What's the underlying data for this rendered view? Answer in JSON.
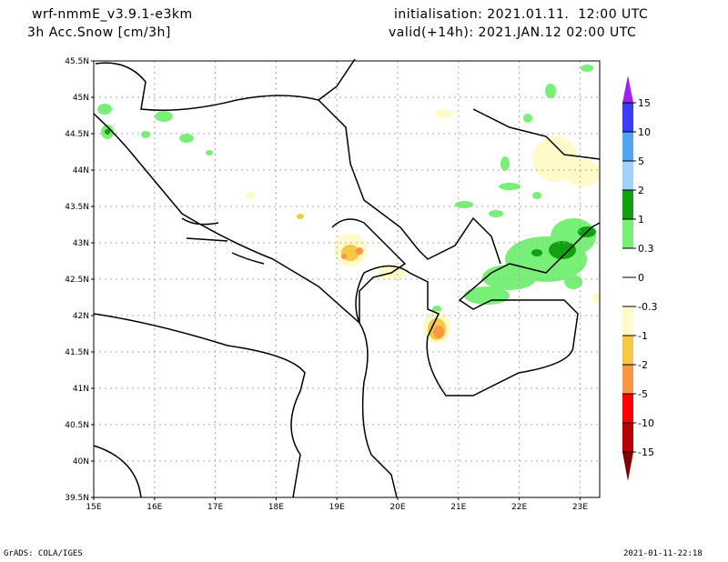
{
  "header": {
    "model": "wrf-nmmE_v3.9.1-e3km",
    "variable": "3h Acc.Snow [cm/3h]",
    "initialisation": "initialisation: 2021.01.11.  12:00 UTC",
    "valid": "valid(+14h): 2021.JAN.12 02:00 UTC"
  },
  "map": {
    "lat_labels": [
      "45.5N",
      "45N",
      "44.5N",
      "44N",
      "43.5N",
      "43N",
      "42.5N",
      "42N",
      "41.5N",
      "41N",
      "40.5N",
      "40N",
      "39.5N"
    ],
    "lon_labels": [
      "15E",
      "16E",
      "17E",
      "18E",
      "19E",
      "20E",
      "21E",
      "22E",
      "23E"
    ]
  },
  "colorbar": {
    "labels": [
      "15",
      "10",
      "5",
      "2",
      "1",
      "0.3",
      "0",
      "-0.3",
      "-1",
      "-2",
      "-5",
      "-10",
      "-15"
    ],
    "colors": [
      "#a020f0",
      "#3c3cf5",
      "#50a5f5",
      "#a0d2fa",
      "#10a010",
      "#78f078",
      "#ffffff",
      "#ffffff",
      "#fffac8",
      "#f5c846",
      "#fa9646",
      "#ff0000",
      "#b40000",
      "#800000"
    ]
  },
  "footer": {
    "left": "GrADS: COLA/IGES",
    "right": "2021-01-11-22:18"
  }
}
